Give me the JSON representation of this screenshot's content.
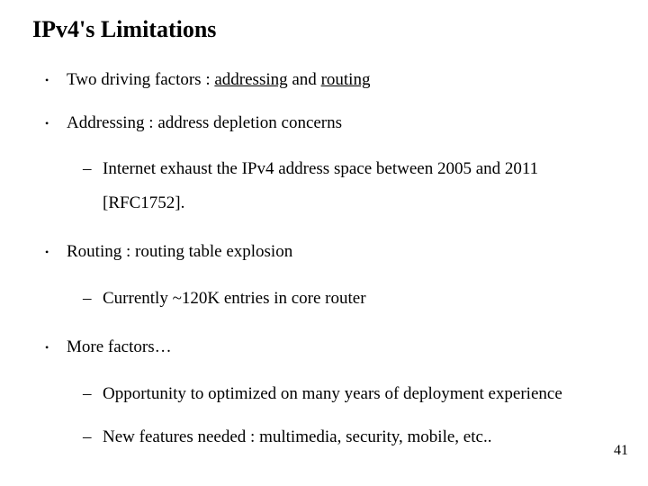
{
  "title": "IPv4's Limitations",
  "bullets": {
    "b0": {
      "text": "Two driving factors : ",
      "u1": "addressing",
      "mid": " and ",
      "u2": "routing"
    },
    "b1": {
      "text": "Addressing : address depletion concerns",
      "sub": [
        "Internet exhaust the IPv4 address space between 2005 and 2011 [RFC1752]."
      ]
    },
    "b2": {
      "text": "Routing : routing table explosion",
      "sub": [
        "Currently ~120K entries in core router"
      ]
    },
    "b3": {
      "text": "More factors…",
      "sub": [
        "Opportunity to optimized on many years of deployment experience",
        "New features needed : multimedia, security, mobile, etc.."
      ]
    }
  },
  "page_number": "41",
  "colors": {
    "background": "#ffffff",
    "text": "#000000"
  },
  "typography": {
    "title_fontsize": 26,
    "body_fontsize": 19,
    "font_family": "Times New Roman"
  }
}
